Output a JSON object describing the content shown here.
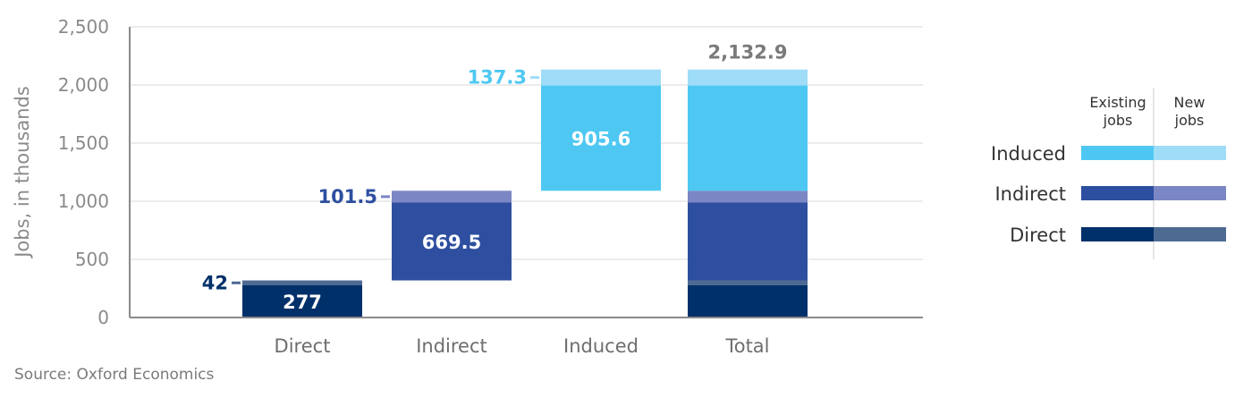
{
  "chart_data": {
    "type": "bar",
    "subtype": "stacked-waterfall",
    "ylabel": "Jobs, in thousands",
    "ylim": [
      0,
      2500
    ],
    "yticks": [
      0,
      500,
      1000,
      1500,
      2000,
      2500
    ],
    "ytick_labels": [
      "0",
      "500",
      "1,000",
      "1,500",
      "2,000",
      "2,500"
    ],
    "grid": true,
    "categories": [
      "Direct",
      "Indirect",
      "Induced",
      "Total"
    ],
    "bars": [
      {
        "category": "Direct",
        "base": 0,
        "existing": 277,
        "new": 42,
        "existing_label": "277",
        "new_label": "42",
        "group": "Direct"
      },
      {
        "category": "Indirect",
        "base": 319,
        "existing": 669.5,
        "new": 101.5,
        "existing_label": "669.5",
        "new_label": "101.5",
        "group": "Indirect"
      },
      {
        "category": "Induced",
        "base": 1090,
        "existing": 905.6,
        "new": 137.3,
        "existing_label": "905.6",
        "new_label": "137.3",
        "group": "Induced"
      }
    ],
    "total": {
      "category": "Total",
      "segments": [
        {
          "group": "Direct",
          "type": "existing",
          "value": 277
        },
        {
          "group": "Direct",
          "type": "new",
          "value": 42
        },
        {
          "group": "Indirect",
          "type": "existing",
          "value": 669.5
        },
        {
          "group": "Indirect",
          "type": "new",
          "value": 101.5
        },
        {
          "group": "Induced",
          "type": "existing",
          "value": 905.6
        },
        {
          "group": "Induced",
          "type": "new",
          "value": 137.3
        }
      ],
      "label": "2,132.9"
    },
    "colors": {
      "Direct": {
        "existing": "#00306a",
        "new": "#4d6a93",
        "label": "#00306a"
      },
      "Indirect": {
        "existing": "#2e4fa0",
        "new": "#7b86c4",
        "label": "#2e4fa0"
      },
      "Induced": {
        "existing": "#4ec8f2",
        "new": "#9fdcf7",
        "label": "#4ec8f2"
      },
      "total_label": "#7a7a7a"
    },
    "legend": {
      "placement": "right",
      "column_existing": "Existing jobs",
      "column_new": "New jobs",
      "rows": [
        "Induced",
        "Indirect",
        "Direct"
      ]
    },
    "source": "Source: Oxford Economics"
  }
}
